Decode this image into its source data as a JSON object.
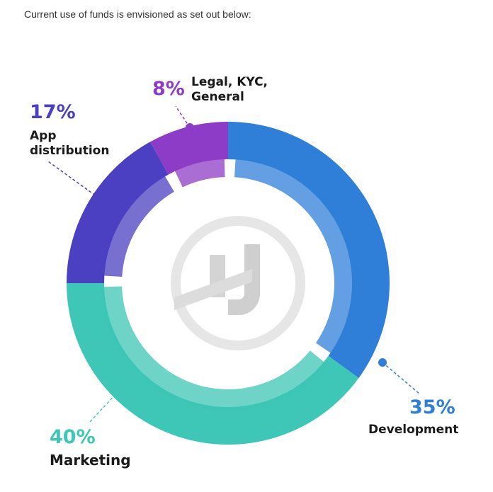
{
  "chart_data": {
    "type": "donut",
    "title": "Current use of funds is envisioned as set out below:",
    "categories": [
      "Development",
      "Marketing",
      "App distribution",
      "Legal, KYC, General"
    ],
    "values": [
      35,
      40,
      17,
      8
    ],
    "value_labels": [
      "35%",
      "40%",
      "17%",
      "8%"
    ],
    "colors": [
      "#2f7fd8",
      "#3ec6b6",
      "#4b40c2",
      "#8c3cc6"
    ]
  }
}
